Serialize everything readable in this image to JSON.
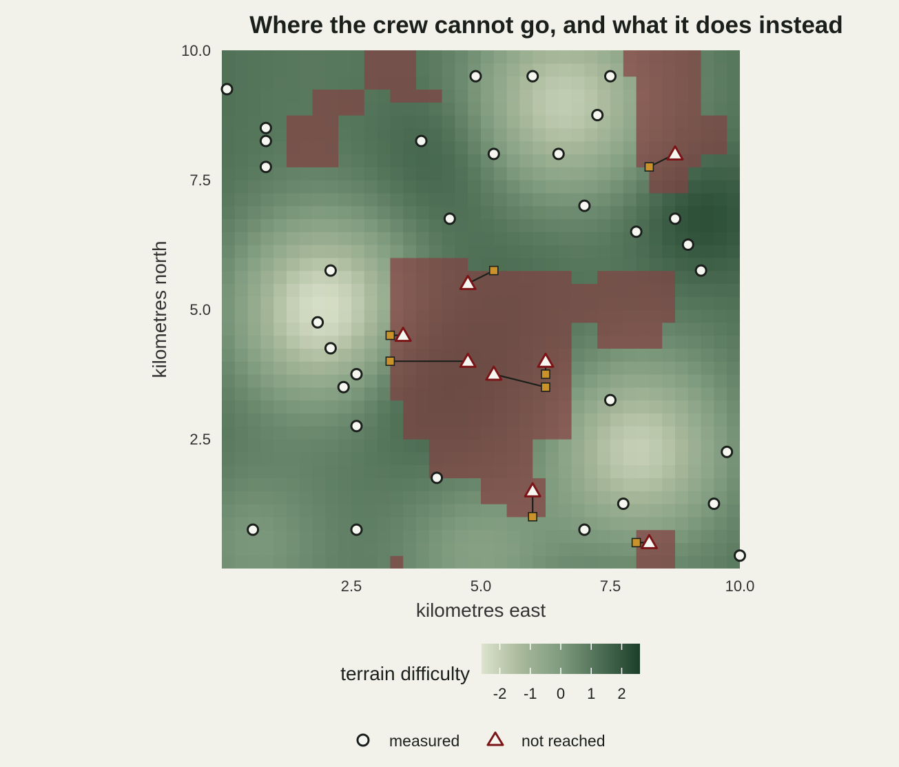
{
  "chart_data": {
    "type": "heatmap",
    "title": "Where the crew cannot go, and what it does instead",
    "xlabel": "kilometres east",
    "ylabel": "kilometres north",
    "xlim": [
      0,
      10
    ],
    "ylim": [
      0,
      10
    ],
    "x_ticks": [
      2.5,
      5.0,
      7.5,
      10.0
    ],
    "y_ticks": [
      2.5,
      5.0,
      7.5,
      10.0
    ],
    "x_tick_labels": [
      "2.5",
      "5.0",
      "7.5",
      "10.0"
    ],
    "y_tick_labels": [
      "2.5",
      "5.0",
      "7.5",
      "10.0"
    ],
    "grid": false,
    "colorbar": {
      "title": "terrain difficulty",
      "range": [
        -2.6,
        2.6
      ],
      "ticks": [
        -2,
        -1,
        0,
        1,
        2
      ],
      "tick_labels": [
        "-2",
        "-1",
        "0",
        "1",
        "2"
      ],
      "colors": [
        "#dde3cd",
        "#a8b89a",
        "#7f9b7f",
        "#4d6e54",
        "#1c3f2a"
      ]
    },
    "impassable_color": "#8a6058",
    "terrain": {
      "field": "smooth difficulty surface with easy basins near (2,5), (6.5,9), (8,2.3) and a difficult band through (9,7), (4.3,8), (3.8,3.8)",
      "impassable_regions": [
        {
          "x0": 1.25,
          "x1": 2.25,
          "y0": 7.75,
          "y1": 8.75
        },
        {
          "x0": 1.75,
          "x1": 2.75,
          "y0": 8.75,
          "y1": 9.25
        },
        {
          "x0": 2.75,
          "x1": 3.75,
          "y0": 9.25,
          "y1": 10.0
        },
        {
          "x0": 3.25,
          "x1": 4.25,
          "y0": 8.95,
          "y1": 9.25
        },
        {
          "x0": 7.75,
          "x1": 9.25,
          "y0": 9.5,
          "y1": 10.0
        },
        {
          "x0": 8.0,
          "x1": 9.25,
          "y0": 7.8,
          "y1": 9.5
        },
        {
          "x0": 8.25,
          "x1": 9.0,
          "y0": 7.25,
          "y1": 7.8
        },
        {
          "x0": 9.0,
          "x1": 9.25,
          "y0": 8.0,
          "y1": 9.0
        },
        {
          "x0": 9.25,
          "x1": 9.75,
          "y0": 8.0,
          "y1": 8.75
        },
        {
          "x0": 3.25,
          "x1": 4.75,
          "y0": 3.25,
          "y1": 6.0
        },
        {
          "x0": 4.75,
          "x1": 6.75,
          "y0": 4.75,
          "y1": 5.75
        },
        {
          "x0": 3.5,
          "x1": 6.75,
          "y0": 2.5,
          "y1": 4.75
        },
        {
          "x0": 4.0,
          "x1": 6.0,
          "y0": 1.75,
          "y1": 2.5
        },
        {
          "x0": 5.0,
          "x1": 6.25,
          "y0": 1.25,
          "y1": 1.75
        },
        {
          "x0": 5.5,
          "x1": 6.25,
          "y0": 1.0,
          "y1": 1.25
        },
        {
          "x0": 6.75,
          "x1": 8.75,
          "y0": 4.75,
          "y1": 5.5
        },
        {
          "x0": 7.25,
          "x1": 8.75,
          "y0": 5.5,
          "y1": 5.75
        },
        {
          "x0": 7.25,
          "x1": 8.5,
          "y0": 4.35,
          "y1": 4.75
        },
        {
          "x0": 8.0,
          "x1": 8.75,
          "y0": 0.0,
          "y1": 0.75
        },
        {
          "x0": 3.25,
          "x1": 3.5,
          "y0": 0.0,
          "y1": 0.25
        }
      ]
    },
    "series": [
      {
        "name": "measured",
        "marker": "circle",
        "points": [
          [
            0.1,
            9.25
          ],
          [
            0.85,
            8.5
          ],
          [
            0.85,
            8.25
          ],
          [
            0.85,
            7.75
          ],
          [
            3.85,
            8.25
          ],
          [
            4.9,
            9.5
          ],
          [
            6.0,
            9.5
          ],
          [
            7.5,
            9.5
          ],
          [
            7.25,
            8.75
          ],
          [
            5.25,
            8.0
          ],
          [
            6.5,
            8.0
          ],
          [
            7.0,
            7.0
          ],
          [
            4.4,
            6.75
          ],
          [
            8.75,
            6.75
          ],
          [
            8.0,
            6.5
          ],
          [
            9.0,
            6.25
          ],
          [
            9.25,
            5.75
          ],
          [
            2.1,
            5.75
          ],
          [
            1.85,
            4.75
          ],
          [
            2.1,
            4.25
          ],
          [
            2.6,
            3.75
          ],
          [
            2.35,
            3.5
          ],
          [
            2.6,
            2.75
          ],
          [
            4.15,
            1.75
          ],
          [
            7.5,
            3.25
          ],
          [
            9.75,
            2.25
          ],
          [
            7.75,
            1.25
          ],
          [
            9.5,
            1.25
          ],
          [
            0.6,
            0.75
          ],
          [
            2.6,
            0.75
          ],
          [
            7.0,
            0.75
          ],
          [
            10.0,
            0.25
          ]
        ]
      },
      {
        "name": "not reached",
        "marker": "triangle",
        "points": [
          [
            8.75,
            8.0
          ],
          [
            4.75,
            5.5
          ],
          [
            3.5,
            4.5
          ],
          [
            4.75,
            4.0
          ],
          [
            6.25,
            4.0
          ],
          [
            5.25,
            3.75
          ],
          [
            6.0,
            1.5
          ],
          [
            8.25,
            0.5
          ]
        ]
      }
    ],
    "relocated": {
      "marker": "square",
      "points": [
        [
          8.25,
          7.75
        ],
        [
          5.25,
          5.75
        ],
        [
          3.25,
          4.5
        ],
        [
          3.25,
          4.0
        ],
        [
          6.25,
          3.75
        ],
        [
          6.25,
          3.5
        ],
        [
          6.0,
          1.0
        ],
        [
          8.0,
          0.5
        ]
      ]
    },
    "links": [
      [
        [
          8.75,
          8.0
        ],
        [
          8.25,
          7.75
        ]
      ],
      [
        [
          4.75,
          5.5
        ],
        [
          5.25,
          5.75
        ]
      ],
      [
        [
          3.5,
          4.5
        ],
        [
          3.25,
          4.5
        ]
      ],
      [
        [
          4.75,
          4.0
        ],
        [
          3.25,
          4.0
        ]
      ],
      [
        [
          6.25,
          4.0
        ],
        [
          6.25,
          3.75
        ]
      ],
      [
        [
          5.25,
          3.75
        ],
        [
          6.25,
          3.5
        ]
      ],
      [
        [
          6.0,
          1.5
        ],
        [
          6.0,
          1.0
        ]
      ],
      [
        [
          8.25,
          0.5
        ],
        [
          8.0,
          0.5
        ]
      ]
    ],
    "legend": {
      "placement": "bottom",
      "entries": [
        "measured",
        "not reached"
      ]
    }
  }
}
